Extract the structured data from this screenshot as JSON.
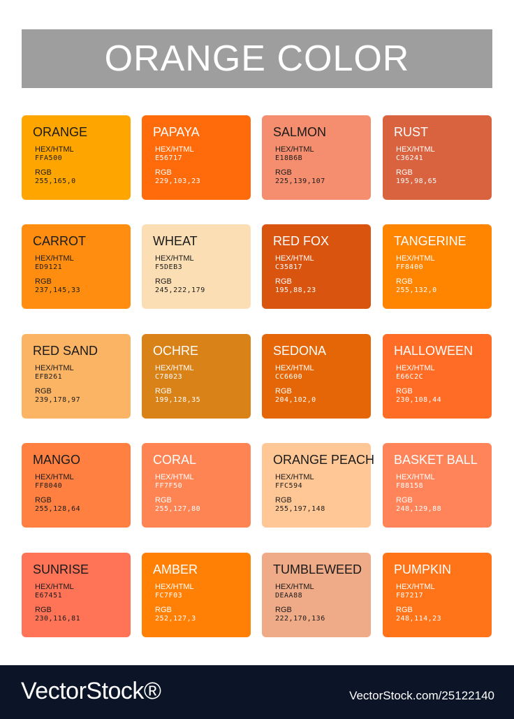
{
  "title": "ORANGE COLOR",
  "labels": {
    "hex": "HEX/HTML",
    "rgb": "RGB"
  },
  "swatches": [
    {
      "name": "ORANGE",
      "hex": "FFA500",
      "rgb": "255,165,0",
      "color": "#FFA500",
      "text_color": "#1a1a1a"
    },
    {
      "name": "PAPAYA",
      "hex": "E56717",
      "rgb": "229,103,23",
      "color": "#FF6A0A",
      "text_color": "#ffffff"
    },
    {
      "name": "SALMON",
      "hex": "E18B6B",
      "rgb": "225,139,107",
      "color": "#F58E6E",
      "text_color": "#1a1a1a"
    },
    {
      "name": "RUST",
      "hex": "C36241",
      "rgb": "195,98,65",
      "color": "#D9623F",
      "text_color": "#ffffff"
    },
    {
      "name": "CARROT",
      "hex": "ED9121",
      "rgb": "237,145,33",
      "color": "#FF8E10",
      "text_color": "#1a1a1a"
    },
    {
      "name": "WHEAT",
      "hex": "F5DEB3",
      "rgb": "245,222,179",
      "color": "#FBDEB3",
      "text_color": "#1a1a1a"
    },
    {
      "name": "RED FOX",
      "hex": "C35817",
      "rgb": "195,88,23",
      "color": "#D9540F",
      "text_color": "#ffffff"
    },
    {
      "name": "TANGERINE",
      "hex": "FF8400",
      "rgb": "255,132,0",
      "color": "#FF8400",
      "text_color": "#ffffff"
    },
    {
      "name": "RED SAND",
      "hex": "EFB261",
      "rgb": "239,178,97",
      "color": "#FBB464",
      "text_color": "#1a1a1a"
    },
    {
      "name": "OCHRE",
      "hex": "C78023",
      "rgb": "199,128,35",
      "color": "#D98218",
      "text_color": "#ffffff"
    },
    {
      "name": "SEDONA",
      "hex": "CC6600",
      "rgb": "204,102,0",
      "color": "#E56606",
      "text_color": "#ffffff"
    },
    {
      "name": "HALLOWEEN",
      "hex": "E66C2C",
      "rgb": "230,108,44",
      "color": "#FF6C26",
      "text_color": "#ffffff"
    },
    {
      "name": "MANGO",
      "hex": "FF8040",
      "rgb": "255,128,64",
      "color": "#FF8040",
      "text_color": "#1a1a1a"
    },
    {
      "name": "CORAL",
      "hex": "FF7F50",
      "rgb": "255,127,80",
      "color": "#FF8454",
      "text_color": "#ffffff"
    },
    {
      "name": "ORANGE PEACH",
      "hex": "FFC594",
      "rgb": "255,197,148",
      "color": "#FFC795",
      "text_color": "#1a1a1a"
    },
    {
      "name": "BASKET BALL",
      "hex": "F88158",
      "rgb": "248,129,88",
      "color": "#FF845A",
      "text_color": "#ffffff"
    },
    {
      "name": "SUNRISE",
      "hex": "E67451",
      "rgb": "230,116,81",
      "color": "#FF7457",
      "text_color": "#1a1a1a"
    },
    {
      "name": "AMBER",
      "hex": "FC7F03",
      "rgb": "252,127,3",
      "color": "#FF8005",
      "text_color": "#ffffff"
    },
    {
      "name": "TUMBLEWEED",
      "hex": "DEAA88",
      "rgb": "222,170,136",
      "color": "#EFAB87",
      "text_color": "#1a1a1a"
    },
    {
      "name": "PUMPKIN",
      "hex": "F87217",
      "rgb": "248,114,23",
      "color": "#FF7418",
      "text_color": "#ffffff"
    }
  ],
  "footer": {
    "logo": "VectorStock®",
    "id_text": "VectorStock.com/25122140"
  }
}
